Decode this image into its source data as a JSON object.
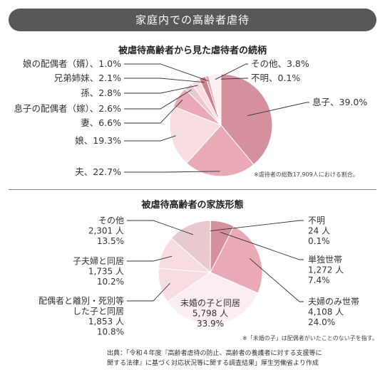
{
  "header": {
    "title": "家庭内での高齢者虐待"
  },
  "colors": {
    "banner": "#595757",
    "slice_strong": "#d4909c",
    "slice_mid": "#e9aab5",
    "slice_light": "#f7dde2",
    "slice_pale": "#fbeef1",
    "slice_grey": "#e8c9cf",
    "slice_dark": "#cc7f8d",
    "leader": "#333333"
  },
  "chart_data": [
    {
      "type": "pie",
      "title": "被虐待高齢者から見た虐待者の続柄",
      "note": "※虐待者の総数17,909人における割合。",
      "start": "top",
      "direction": "clockwise",
      "slices": [
        {
          "name": "息子",
          "value": 39.0,
          "label": "息子、39.0%"
        },
        {
          "name": "夫",
          "value": 22.7,
          "label": "夫、22.7%"
        },
        {
          "name": "娘",
          "value": 19.3,
          "label": "娘、19.3%"
        },
        {
          "name": "妻",
          "value": 6.6,
          "label": "妻、6.6%"
        },
        {
          "name": "息子の配偶者（嫁）",
          "value": 2.6,
          "label": "息子の配偶者（嫁）、2.6%"
        },
        {
          "name": "孫",
          "value": 2.8,
          "label": "孫、2.8%"
        },
        {
          "name": "兄弟姉妹",
          "value": 2.1,
          "label": "兄弟姉妹、2.1%"
        },
        {
          "name": "娘の配偶者（婿）",
          "value": 1.0,
          "label": "娘の配偶者（婿）、1.0%"
        },
        {
          "name": "その他",
          "value": 3.8,
          "label": "その他、3.8%"
        },
        {
          "name": "不明",
          "value": 0.1,
          "label": "不明、0.1%"
        }
      ]
    },
    {
      "type": "pie",
      "title": "被虐待高齢者の家族形態",
      "note": "※「未婚の子」は配偶者がいたことのない子を指す。",
      "start": "top",
      "direction": "clockwise",
      "slices": [
        {
          "name": "不明",
          "count": 24,
          "value": 0.1,
          "lines": [
            "不明",
            "24 人",
            "0.1%"
          ]
        },
        {
          "name": "単独世帯",
          "count": 1272,
          "value": 7.4,
          "lines": [
            "単独世帯",
            "1,272 人",
            "7.4%"
          ]
        },
        {
          "name": "夫婦のみ世帯",
          "count": 4108,
          "value": 24.0,
          "lines": [
            "夫婦のみ世帯",
            "4,108 人",
            "24.0%"
          ]
        },
        {
          "name": "未婚の子と同居",
          "count": 5798,
          "value": 33.9,
          "lines": [
            "未婚の子と同居",
            "5,798 人",
            "33.9%"
          ]
        },
        {
          "name": "配偶者と離別・死別等した子と同居",
          "count": 1853,
          "value": 10.8,
          "lines": [
            "配偶者と離別・死別等",
            "した子と同居",
            "1,853 人",
            "10.8%"
          ]
        },
        {
          "name": "子夫婦と同居",
          "count": 1735,
          "value": 10.2,
          "lines": [
            "子夫婦と同居",
            "1,735 人",
            "10.2%"
          ]
        },
        {
          "name": "その他",
          "count": 2301,
          "value": 13.5,
          "lines": [
            "その他",
            "2,301 人",
            "13.5%"
          ]
        }
      ]
    }
  ],
  "source": {
    "line1": "出典：「令和４年度『高齢者虐待の防止、高齢者の養護者に対する支援等に",
    "line2": "関する法律』に基づく対応状況等に関する調査結果」厚生労働省より作成"
  }
}
